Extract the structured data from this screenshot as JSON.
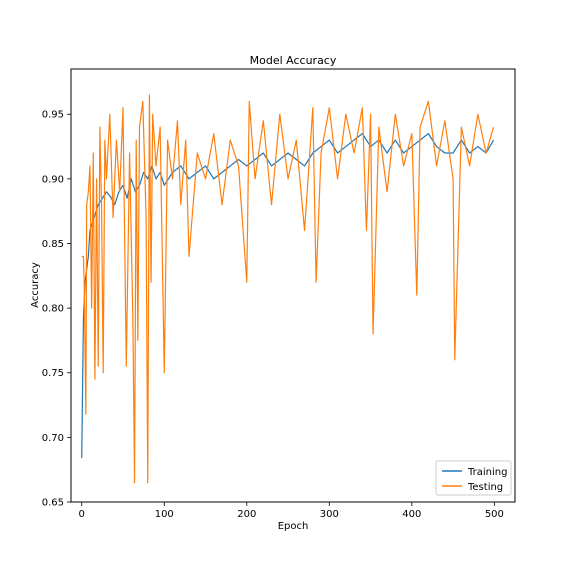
{
  "chart_data": {
    "type": "line",
    "title": "Model Accuracy",
    "xlabel": "Epoch",
    "ylabel": "Accuracy",
    "xlim": [
      -13,
      525
    ],
    "ylim": [
      0.65,
      0.985
    ],
    "xticks": [
      0,
      100,
      200,
      300,
      400,
      500
    ],
    "xtick_labels": [
      "0",
      "100",
      "200",
      "300",
      "400",
      "500"
    ],
    "yticks": [
      0.65,
      0.7,
      0.75,
      0.8,
      0.85,
      0.9,
      0.95
    ],
    "ytick_labels": [
      "0.65",
      "0.70",
      "0.75",
      "0.80",
      "0.85",
      "0.90",
      "0.95"
    ],
    "grid": false,
    "legend_position": "lower-right",
    "series": [
      {
        "name": "Training",
        "color": "#1f77b4",
        "x": [
          0,
          2,
          4,
          6,
          8,
          10,
          15,
          20,
          25,
          30,
          35,
          40,
          45,
          50,
          55,
          60,
          65,
          70,
          75,
          80,
          85,
          90,
          95,
          100,
          110,
          120,
          130,
          140,
          150,
          160,
          170,
          180,
          190,
          200,
          210,
          220,
          230,
          240,
          250,
          260,
          270,
          280,
          290,
          300,
          310,
          320,
          330,
          340,
          350,
          360,
          370,
          380,
          390,
          400,
          410,
          420,
          430,
          440,
          450,
          460,
          470,
          480,
          490,
          499
        ],
        "values": [
          0.684,
          0.79,
          0.82,
          0.83,
          0.84,
          0.86,
          0.87,
          0.88,
          0.885,
          0.89,
          0.886,
          0.88,
          0.89,
          0.895,
          0.885,
          0.9,
          0.89,
          0.895,
          0.905,
          0.9,
          0.91,
          0.9,
          0.905,
          0.895,
          0.905,
          0.91,
          0.9,
          0.905,
          0.91,
          0.9,
          0.905,
          0.91,
          0.915,
          0.91,
          0.915,
          0.92,
          0.91,
          0.915,
          0.92,
          0.915,
          0.91,
          0.92,
          0.925,
          0.93,
          0.92,
          0.925,
          0.93,
          0.935,
          0.925,
          0.93,
          0.92,
          0.93,
          0.92,
          0.925,
          0.93,
          0.935,
          0.925,
          0.92,
          0.92,
          0.93,
          0.92,
          0.925,
          0.92,
          0.93
        ]
      },
      {
        "name": "Testing",
        "color": "#ff7f0e",
        "x": [
          0,
          2,
          3,
          5,
          6,
          8,
          10,
          12,
          14,
          16,
          18,
          20,
          22,
          24,
          26,
          28,
          30,
          34,
          38,
          42,
          46,
          50,
          54,
          58,
          62,
          64,
          66,
          68,
          70,
          74,
          78,
          80,
          82,
          84,
          86,
          90,
          95,
          100,
          104,
          110,
          116,
          120,
          126,
          130,
          140,
          150,
          160,
          170,
          180,
          190,
          200,
          203,
          210,
          220,
          230,
          240,
          250,
          260,
          270,
          280,
          284,
          290,
          300,
          310,
          320,
          330,
          340,
          345,
          350,
          353,
          360,
          370,
          380,
          390,
          400,
          406,
          410,
          420,
          430,
          440,
          450,
          452,
          460,
          470,
          480,
          490,
          499
        ],
        "values": [
          0.84,
          0.84,
          0.82,
          0.718,
          0.88,
          0.89,
          0.91,
          0.8,
          0.92,
          0.745,
          0.9,
          0.755,
          0.94,
          0.88,
          0.75,
          0.93,
          0.9,
          0.95,
          0.87,
          0.93,
          0.89,
          0.955,
          0.755,
          0.92,
          0.79,
          0.665,
          0.93,
          0.775,
          0.94,
          0.96,
          0.87,
          0.665,
          0.965,
          0.82,
          0.95,
          0.91,
          0.94,
          0.75,
          0.93,
          0.9,
          0.945,
          0.88,
          0.93,
          0.84,
          0.92,
          0.9,
          0.935,
          0.88,
          0.93,
          0.91,
          0.82,
          0.96,
          0.9,
          0.945,
          0.88,
          0.95,
          0.9,
          0.93,
          0.86,
          0.955,
          0.82,
          0.92,
          0.955,
          0.9,
          0.95,
          0.92,
          0.955,
          0.86,
          0.95,
          0.78,
          0.94,
          0.89,
          0.95,
          0.91,
          0.935,
          0.81,
          0.94,
          0.96,
          0.91,
          0.945,
          0.9,
          0.76,
          0.94,
          0.91,
          0.95,
          0.92,
          0.94
        ]
      }
    ]
  }
}
